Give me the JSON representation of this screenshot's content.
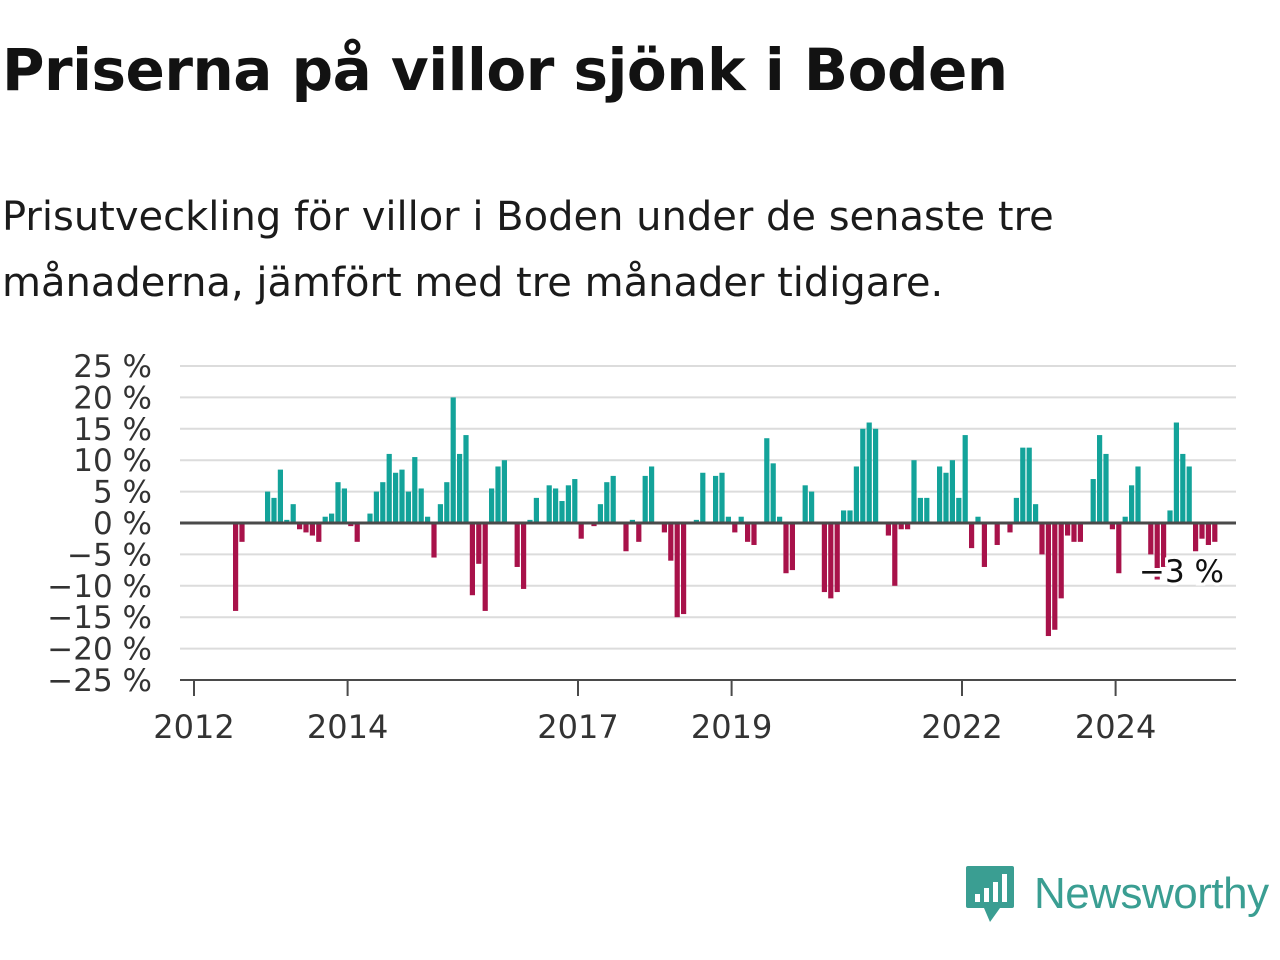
{
  "title": "Priserna på villor sjönk i Boden",
  "subtitle": "Prisutveckling för villor i Boden under de senaste tre månaderna, jämfört med tre månader tidigare.",
  "brand": "Newsworthy",
  "colors": {
    "positive": "#13a39a",
    "negative": "#a8124a",
    "text": "#1b1b1b",
    "grid": "#dcdcdc",
    "axis": "#4a4a4a",
    "brand": "#3a9e92"
  },
  "chart_data": {
    "type": "bar",
    "title": "Priserna på villor sjönk i Boden",
    "subtitle": "Prisutveckling för villor i Boden under de senaste tre månaderna, jämfört med tre månader tidigare.",
    "xlabel": "",
    "ylabel": "",
    "ylim": [
      -25,
      25
    ],
    "y_ticks": [
      25,
      20,
      15,
      10,
      5,
      0,
      -5,
      -10,
      -15,
      -20,
      -25
    ],
    "y_tick_labels": [
      "25 %",
      "20 %",
      "15 %",
      "10 %",
      "5 %",
      "0 %",
      "−5 %",
      "−10 %",
      "−15 %",
      "−20 %",
      "−25 %"
    ],
    "x_ticks": [
      "2012",
      "2014",
      "2017",
      "2019",
      "2022",
      "2024"
    ],
    "x_start": "2012-01",
    "grid": true,
    "last_value_label": "−3 %",
    "values": [
      0,
      0,
      0,
      0,
      0,
      0,
      -14,
      -3,
      0,
      0,
      0,
      5,
      4,
      8.5,
      0.5,
      3,
      -1,
      -1.5,
      -2,
      -3,
      1,
      1.5,
      6.5,
      5.5,
      -0.5,
      -3,
      0,
      1.5,
      5,
      6.5,
      11,
      8,
      8.5,
      5,
      10.5,
      5.5,
      1,
      -5.5,
      3,
      6.5,
      20,
      11,
      14,
      -11.5,
      -6.5,
      -14,
      5.5,
      9,
      10,
      0,
      -7,
      -10.5,
      0.5,
      4,
      0,
      6,
      5.5,
      3.5,
      6,
      7,
      -2.5,
      0,
      -0.5,
      3,
      6.5,
      7.5,
      0,
      -4.5,
      0.5,
      -3,
      7.5,
      9,
      0,
      -1.5,
      -6,
      -15,
      -14.5,
      0,
      0.5,
      8,
      0,
      7.5,
      8,
      1,
      -1.5,
      1,
      -3,
      -3.5,
      0,
      13.5,
      9.5,
      1,
      -8,
      -7.5,
      0,
      6,
      5,
      0,
      -11,
      -12,
      -11,
      2,
      2,
      9,
      15,
      16,
      15,
      0,
      -2,
      -10,
      -1,
      -1,
      10,
      4,
      4,
      0,
      9,
      8,
      10,
      4,
      14,
      -4,
      1,
      -7,
      0,
      -3.5,
      0,
      -1.5,
      4,
      12,
      12,
      3,
      -5,
      -18,
      -17,
      -12,
      -2,
      -3,
      -3,
      0,
      7,
      14,
      11,
      -1,
      -8,
      1,
      6,
      9,
      0,
      -5,
      -9,
      -7,
      2,
      16,
      11,
      9,
      -4.5,
      -2.5,
      -3.5,
      -3
    ]
  }
}
